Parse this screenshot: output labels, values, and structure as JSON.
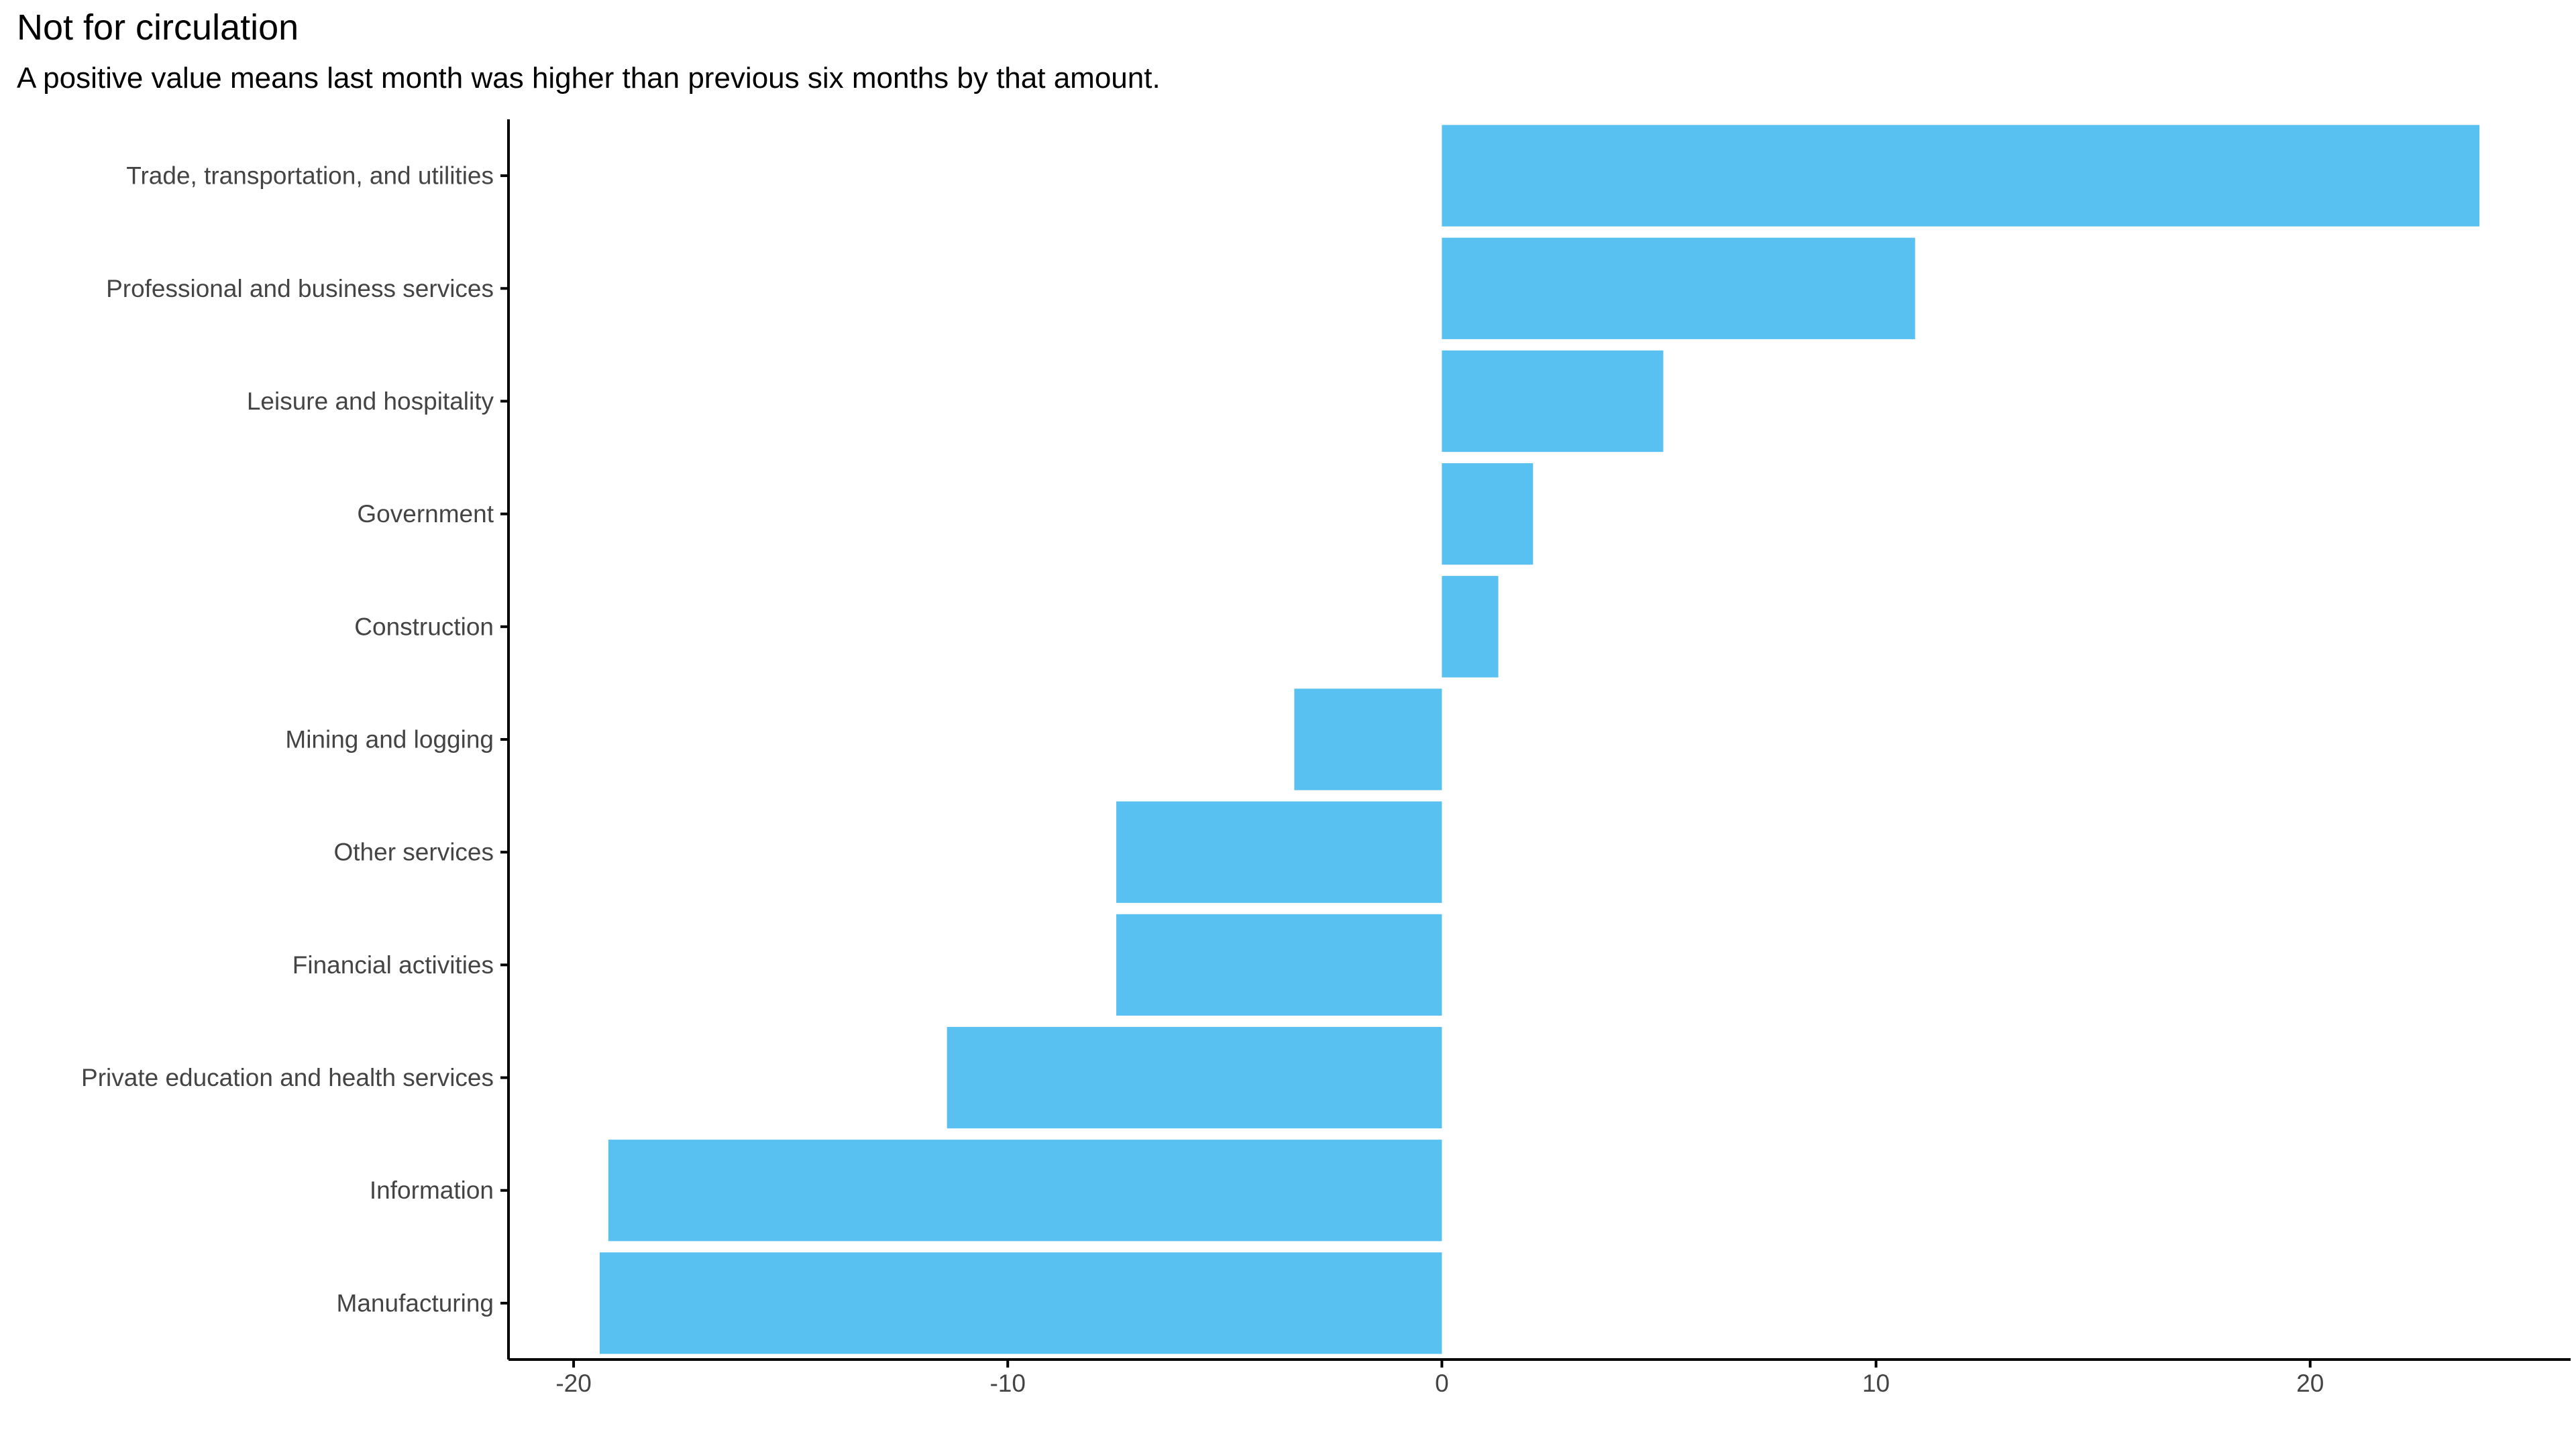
{
  "title": "Not for circulation",
  "subtitle": "A positive value means last month was higher than previous six months by that amount.",
  "chart_data": {
    "type": "bar",
    "orientation": "horizontal",
    "categories": [
      "Trade, transportation, and utilities",
      "Professional and business services",
      "Leisure and hospitality",
      "Government",
      "Construction",
      "Mining and logging",
      "Other services",
      "Financial activities",
      "Private education and health services",
      "Information",
      "Manufacturing"
    ],
    "values": [
      23.9,
      10.9,
      5.1,
      2.1,
      1.3,
      -3.4,
      -7.5,
      -7.5,
      -11.4,
      -19.2,
      -19.4
    ],
    "title": "Not for circulation",
    "subtitle": "A positive value means last month was higher than previous six months by that amount.",
    "xlabel": "",
    "ylabel": "",
    "xlim": [
      -21.5,
      26
    ],
    "xticks": [
      -20,
      -10,
      0,
      10,
      20
    ],
    "xtick_labels": [
      "-20",
      "-10",
      "0",
      "10",
      "20"
    ],
    "grid": false,
    "bar_color": "#58C1F1",
    "axis_color": "#000000"
  }
}
